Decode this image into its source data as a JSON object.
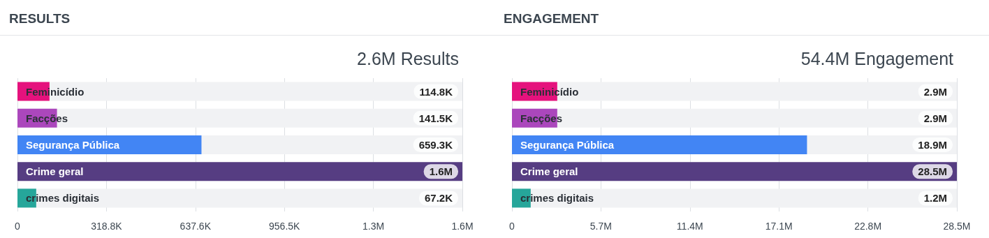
{
  "chart_data": [
    {
      "type": "bar",
      "orientation": "horizontal",
      "title": "RESULTS",
      "subtitle": "2.6M Results",
      "categories": [
        "Feminicídio",
        "Facções",
        "Segurança Pública",
        "Crime geral",
        "crimes digitais"
      ],
      "values": [
        114800,
        141500,
        659300,
        1594100,
        67200
      ],
      "colors": [
        "#e5127d",
        "#ab47bc",
        "#4285f4",
        "#563d82",
        "#26a69a"
      ],
      "value_labels": [
        "114.8K",
        "141.5K",
        "659.3K",
        "1.6M",
        "67.2K"
      ],
      "xlim": [
        0,
        1594100
      ],
      "xticks": [
        0,
        {
          "value": 318800,
          "label": "318.8K"
        },
        {
          "value": 637600,
          "label": "637.6K"
        },
        {
          "value": 956500,
          "label": "956.5K"
        },
        {
          "value": 1275300,
          "label": "1.3M"
        },
        {
          "value": 1594100,
          "label": "1.6M"
        }
      ],
      "grid": "x"
    },
    {
      "type": "bar",
      "orientation": "horizontal",
      "title": "ENGAGEMENT",
      "subtitle": "54.4M Engagement",
      "categories": [
        "Feminicídio",
        "Facções",
        "Segurança Pública",
        "Crime geral",
        "crimes digitais"
      ],
      "values": [
        2900000,
        2900000,
        18900000,
        28500000,
        1200000
      ],
      "colors": [
        "#e5127d",
        "#ab47bc",
        "#4285f4",
        "#563d82",
        "#26a69a"
      ],
      "value_labels": [
        "2.9M",
        "2.9M",
        "18.9M",
        "28.5M",
        "1.2M"
      ],
      "xlim": [
        0,
        28500000
      ],
      "xticks": [
        0,
        {
          "value": 5700000,
          "label": "5.7M"
        },
        {
          "value": 11400000,
          "label": "11.4M"
        },
        {
          "value": 17100000,
          "label": "17.1M"
        },
        {
          "value": 22800000,
          "label": "22.8M"
        },
        {
          "value": 28500000,
          "label": "28.5M"
        }
      ],
      "grid": "x"
    }
  ]
}
